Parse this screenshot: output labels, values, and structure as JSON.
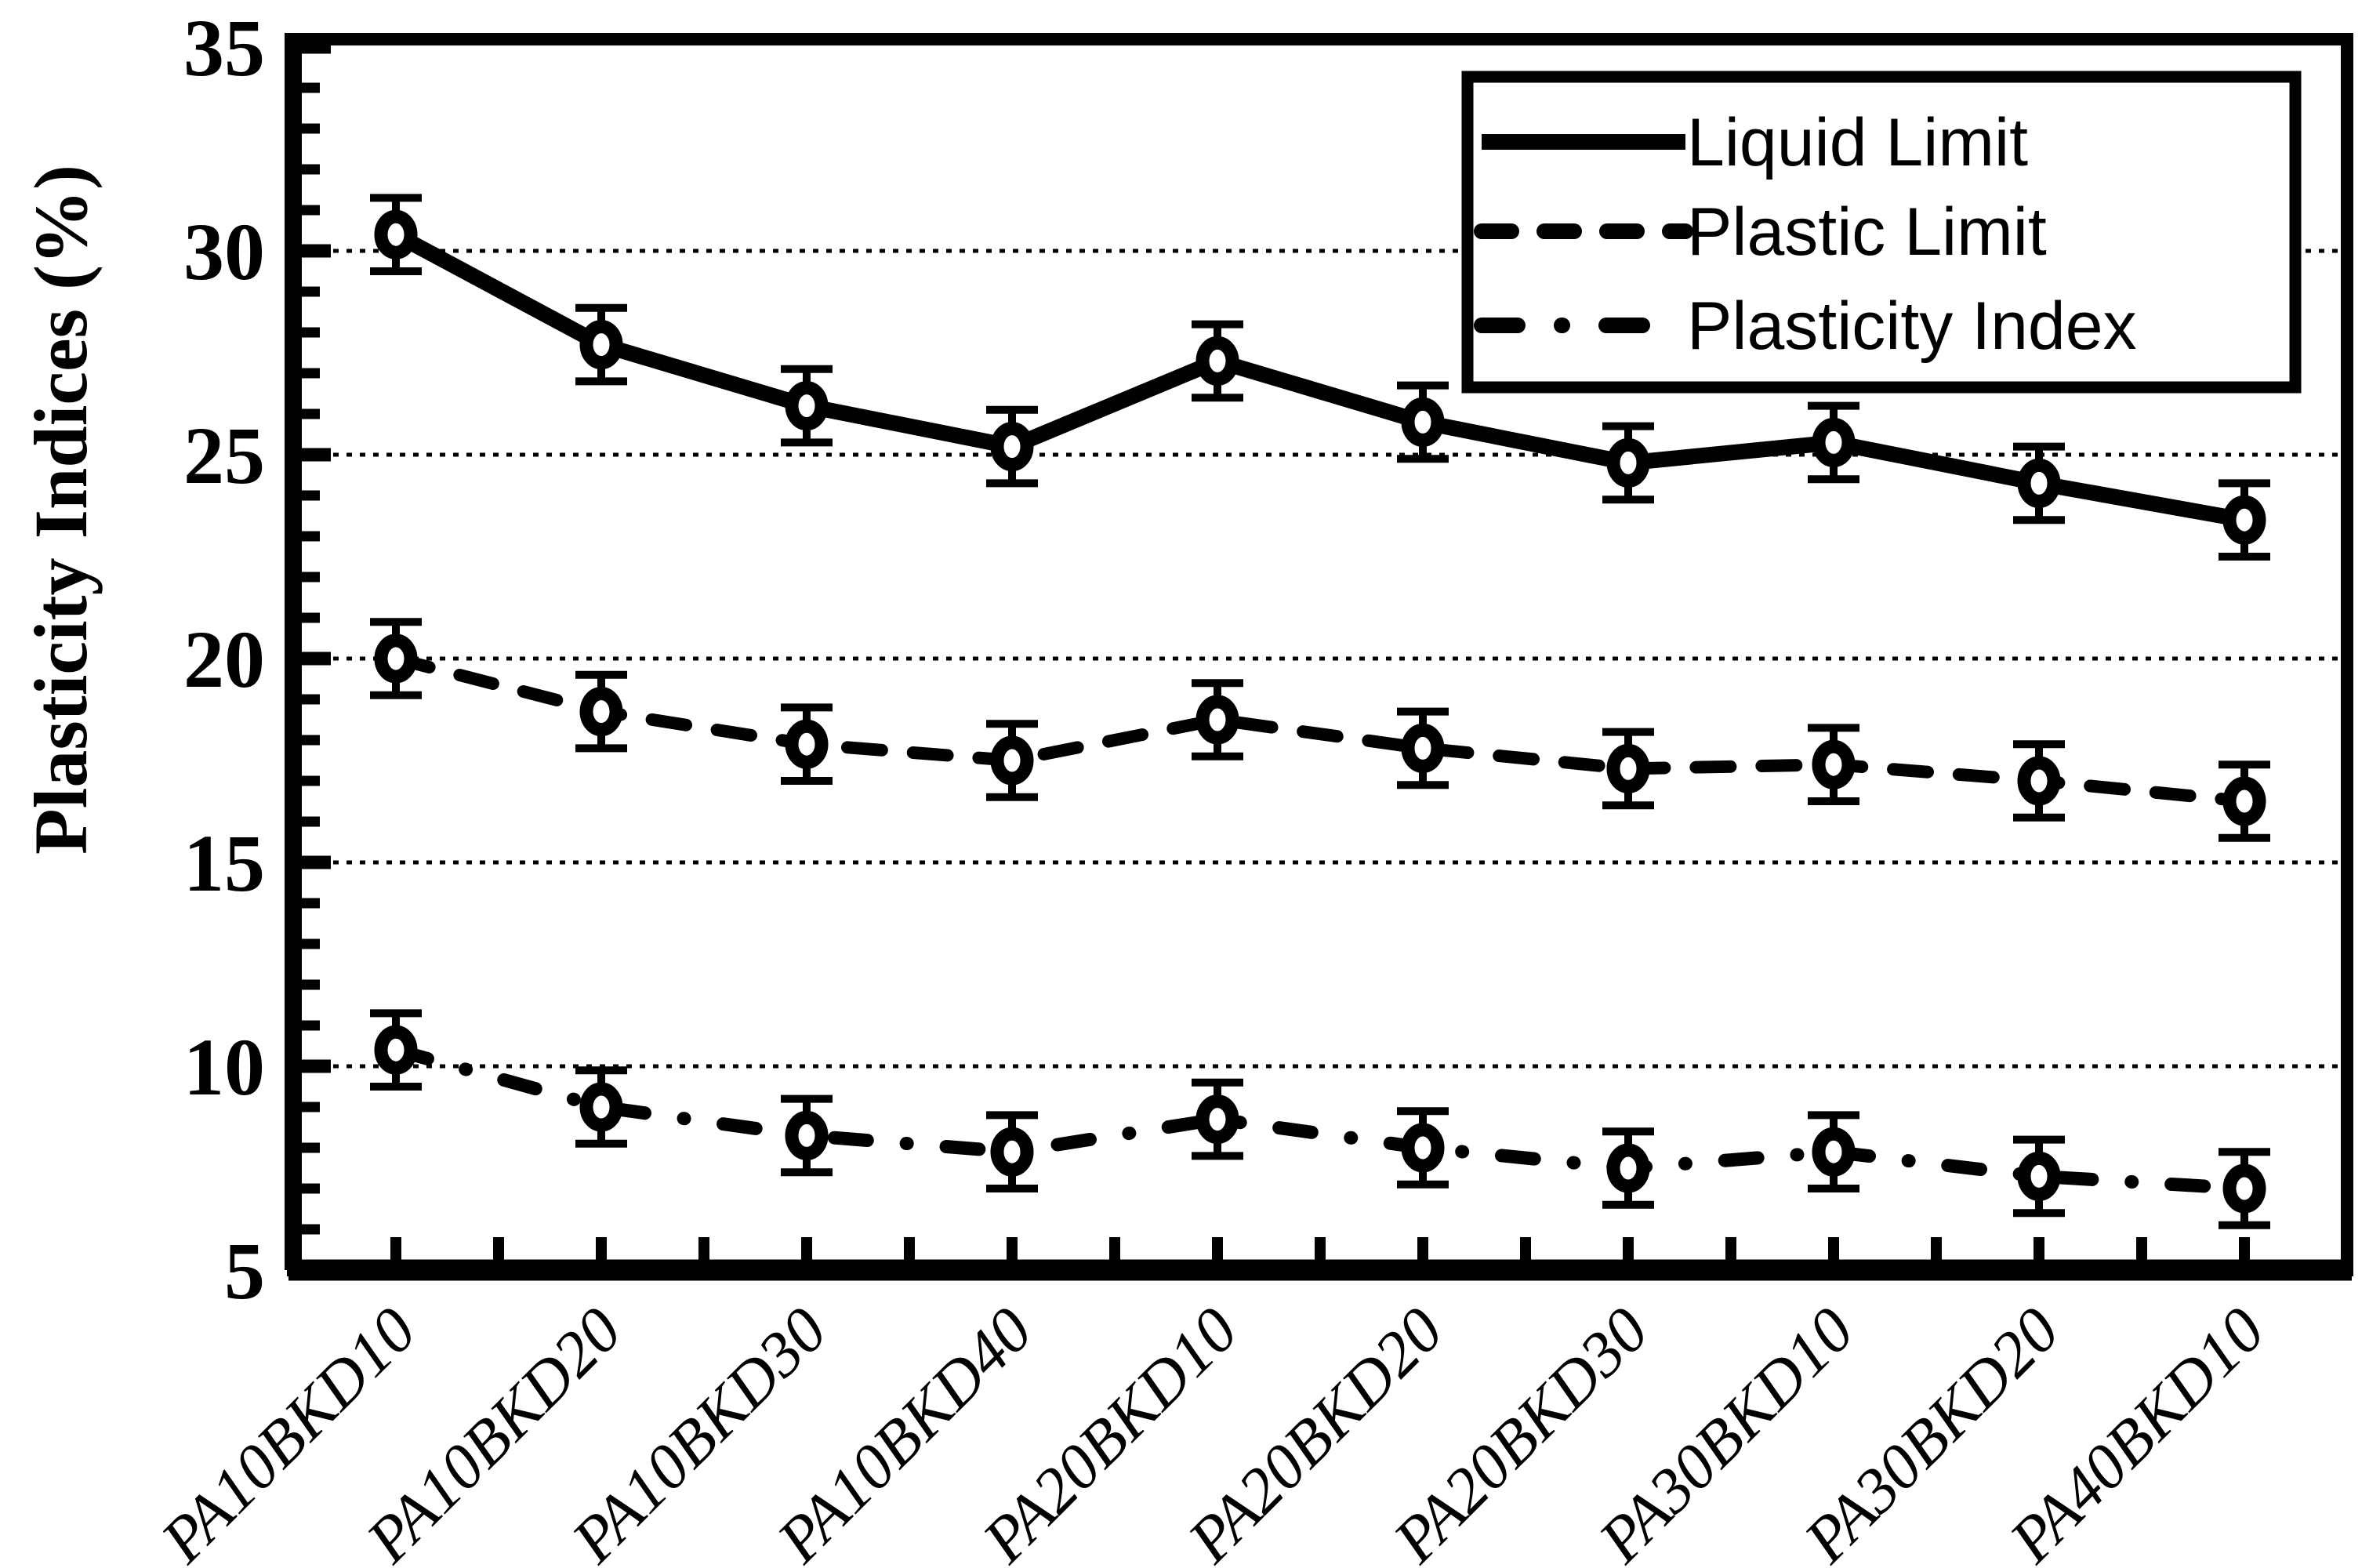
{
  "chart_data": {
    "type": "line",
    "title": "",
    "xlabel": "",
    "ylabel": "Plasticity Indices (%)",
    "ylim": [
      5,
      35
    ],
    "ytick_step": 5,
    "minor_ytick_step": 1,
    "yticks_labels": [
      "5",
      "10",
      "15",
      "20",
      "25",
      "30",
      "35"
    ],
    "gridlines": {
      "values": [
        10,
        15,
        20,
        25,
        30
      ],
      "style": "dotted-horizontal"
    },
    "categories": [
      "PA10BKD10",
      "PA10BKD20",
      "PA10BKD30",
      "PA10BKD40",
      "PA20BKD10",
      "PA20BKD20",
      "PA20BKD30",
      "PA30BKD10",
      "PA30BKD20",
      "PA40BKD10"
    ],
    "series": [
      {
        "name": "Liquid Limit",
        "line_style": "solid",
        "marker": "open-circle",
        "values": [
          30.4,
          27.7,
          26.2,
          25.2,
          27.3,
          25.8,
          24.8,
          25.3,
          24.3,
          23.4
        ],
        "error": 0.9
      },
      {
        "name": "Plastic Limit",
        "line_style": "dashed",
        "marker": "open-circle",
        "values": [
          20.0,
          18.7,
          17.9,
          17.5,
          18.5,
          17.8,
          17.3,
          17.4,
          17.0,
          16.5
        ],
        "error": 0.9
      },
      {
        "name": "Plasticity Index",
        "line_style": "dash-dot",
        "marker": "open-circle",
        "values": [
          10.4,
          9.0,
          8.3,
          7.9,
          8.7,
          8.0,
          7.5,
          7.9,
          7.3,
          7.0
        ],
        "error": 0.9
      }
    ],
    "legend": {
      "position": "top-right",
      "items": [
        "Liquid Limit",
        "Plastic Limit",
        "Plasticity Index"
      ]
    },
    "colors": {
      "foreground": "#000000",
      "background": "#ffffff"
    }
  }
}
